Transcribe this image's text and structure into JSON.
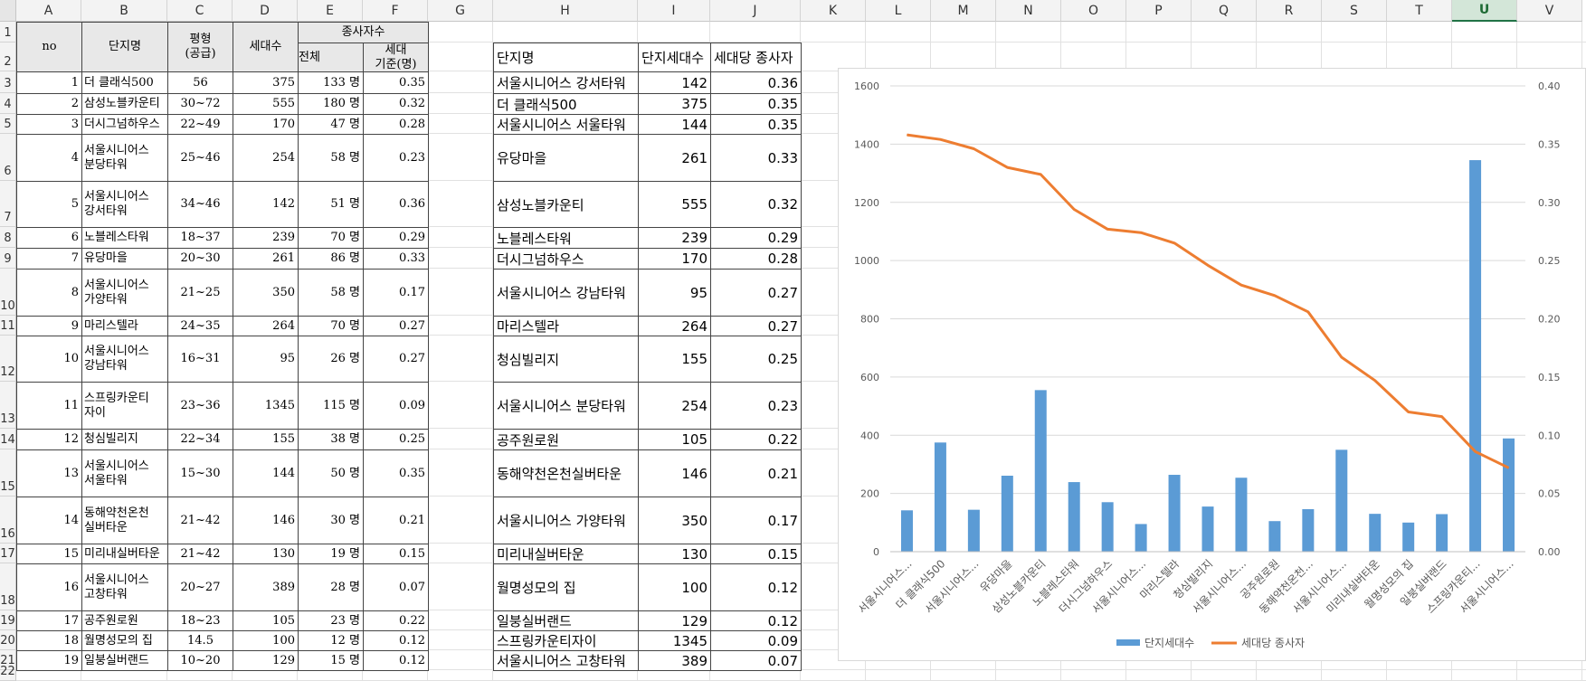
{
  "columns": [
    "A",
    "B",
    "C",
    "D",
    "E",
    "F",
    "G",
    "H",
    "I",
    "J",
    "K",
    "L",
    "M",
    "N",
    "O",
    "P",
    "Q",
    "R",
    "S",
    "T",
    "U",
    "V"
  ],
  "selected_column": "U",
  "rows": [
    "1",
    "2",
    "3",
    "4",
    "5",
    "6",
    "7",
    "8",
    "9",
    "10",
    "11",
    "12",
    "13",
    "14",
    "15",
    "16",
    "17",
    "18",
    "19",
    "20",
    "21",
    "22"
  ],
  "left_table": {
    "headers": {
      "no": "no",
      "name": "단지명",
      "size": "평형\n(공급)",
      "households": "세대수",
      "staff": "종사자수",
      "staff_total": "전체",
      "staff_per": "세대\n기준(명)"
    },
    "rows": [
      {
        "no": "1",
        "name": "더 클래식500",
        "size": "56",
        "households": "375",
        "staff": "133 명",
        "per": "0.35"
      },
      {
        "no": "2",
        "name": "삼성노블카운티",
        "size": "30~72",
        "households": "555",
        "staff": "180 명",
        "per": "0.32"
      },
      {
        "no": "3",
        "name": "더시그넘하우스",
        "size": "22~49",
        "households": "170",
        "staff": "47 명",
        "per": "0.28"
      },
      {
        "no": "4",
        "name": "서울시니어스\n분당타워",
        "size": "25~46",
        "households": "254",
        "staff": "58 명",
        "per": "0.23"
      },
      {
        "no": "5",
        "name": "서울시니어스\n강서타워",
        "size": "34~46",
        "households": "142",
        "staff": "51 명",
        "per": "0.36"
      },
      {
        "no": "6",
        "name": "노블레스타워",
        "size": "18~37",
        "households": "239",
        "staff": "70 명",
        "per": "0.29"
      },
      {
        "no": "7",
        "name": "유당마을",
        "size": "20~30",
        "households": "261",
        "staff": "86 명",
        "per": "0.33"
      },
      {
        "no": "8",
        "name": "서울시니어스\n가양타워",
        "size": "21~25",
        "households": "350",
        "staff": "58 명",
        "per": "0.17"
      },
      {
        "no": "9",
        "name": "마리스텔라",
        "size": "24~35",
        "households": "264",
        "staff": "70 명",
        "per": "0.27"
      },
      {
        "no": "10",
        "name": "서울시니어스\n강남타워",
        "size": "16~31",
        "households": "95",
        "staff": "26 명",
        "per": "0.27"
      },
      {
        "no": "11",
        "name": "스프링카운티\n자이",
        "size": "23~36",
        "households": "1345",
        "staff": "115 명",
        "per": "0.09"
      },
      {
        "no": "12",
        "name": "청심빌리지",
        "size": "22~34",
        "households": "155",
        "staff": "38 명",
        "per": "0.25"
      },
      {
        "no": "13",
        "name": "서울시니어스\n서울타워",
        "size": "15~30",
        "households": "144",
        "staff": "50 명",
        "per": "0.35"
      },
      {
        "no": "14",
        "name": "동해약천온천\n실버타운",
        "size": "21~42",
        "households": "146",
        "staff": "30 명",
        "per": "0.21"
      },
      {
        "no": "15",
        "name": "미리내실버타운",
        "size": "21~42",
        "households": "130",
        "staff": "19 명",
        "per": "0.15"
      },
      {
        "no": "16",
        "name": "서울시니어스\n고창타워",
        "size": "20~27",
        "households": "389",
        "staff": "28 명",
        "per": "0.07"
      },
      {
        "no": "17",
        "name": "공주원로원",
        "size": "18~23",
        "households": "105",
        "staff": "23 명",
        "per": "0.22"
      },
      {
        "no": "18",
        "name": "월명성모의 집",
        "size": "14.5",
        "households": "100",
        "staff": "12 명",
        "per": "0.12"
      },
      {
        "no": "19",
        "name": "일붕실버랜드",
        "size": "10~20",
        "households": "129",
        "staff": "15 명",
        "per": "0.12"
      }
    ]
  },
  "right_table": {
    "headers": {
      "name": "단지명",
      "households": "단지세대수",
      "per": "세대당 종사자"
    },
    "rows": [
      {
        "name": "서울시니어스 강서타워",
        "households": "142",
        "per": "0.36"
      },
      {
        "name": "더 클래식500",
        "households": "375",
        "per": "0.35"
      },
      {
        "name": "서울시니어스 서울타워",
        "households": "144",
        "per": "0.35"
      },
      {
        "name": "유당마을",
        "households": "261",
        "per": "0.33"
      },
      {
        "name": "삼성노블카운티",
        "households": "555",
        "per": "0.32"
      },
      {
        "name": "노블레스타워",
        "households": "239",
        "per": "0.29"
      },
      {
        "name": "더시그넘하우스",
        "households": "170",
        "per": "0.28"
      },
      {
        "name": "서울시니어스 강남타워",
        "households": "95",
        "per": "0.27"
      },
      {
        "name": "마리스텔라",
        "households": "264",
        "per": "0.27"
      },
      {
        "name": "청심빌리지",
        "households": "155",
        "per": "0.25"
      },
      {
        "name": "서울시니어스 분당타워",
        "households": "254",
        "per": "0.23"
      },
      {
        "name": "공주원로원",
        "households": "105",
        "per": "0.22"
      },
      {
        "name": "동해약천온천실버타운",
        "households": "146",
        "per": "0.21"
      },
      {
        "name": "서울시니어스 가양타워",
        "households": "350",
        "per": "0.17"
      },
      {
        "name": "미리내실버타운",
        "households": "130",
        "per": "0.15"
      },
      {
        "name": "월명성모의 집",
        "households": "100",
        "per": "0.12"
      },
      {
        "name": "일붕실버랜드",
        "households": "129",
        "per": "0.12"
      },
      {
        "name": "스프링카운티자이",
        "households": "1345",
        "per": "0.09"
      },
      {
        "name": "서울시니어스 고창타워",
        "households": "389",
        "per": "0.07"
      }
    ]
  },
  "chart_data": {
    "type": "bar",
    "title": "",
    "categories": [
      "서울시니어스...",
      "더 클래식500",
      "서울시니어스...",
      "유당마을",
      "삼성노블카운티",
      "노블레스타워",
      "더시그넘하우스",
      "서울시니어스...",
      "마리스텔라",
      "청심빌리지",
      "서울시니어스...",
      "공주원로원",
      "동해약천온천...",
      "서울시니어스...",
      "미리내실버타운",
      "월명성모의 집",
      "일붕실버랜드",
      "스프링카운티...",
      "서울시니어스..."
    ],
    "series": [
      {
        "name": "단지세대수",
        "type": "bar",
        "axis": "left",
        "color": "#5b9bd5",
        "values": [
          142,
          375,
          144,
          261,
          555,
          239,
          170,
          95,
          264,
          155,
          254,
          105,
          146,
          350,
          130,
          100,
          129,
          1345,
          389
        ]
      },
      {
        "name": "세대당 종사자",
        "type": "line",
        "axis": "right",
        "color": "#ed7d31",
        "values": [
          0.358,
          0.354,
          0.346,
          0.33,
          0.324,
          0.294,
          0.277,
          0.274,
          0.265,
          0.246,
          0.229,
          0.22,
          0.206,
          0.167,
          0.147,
          0.12,
          0.116,
          0.086,
          0.072
        ]
      }
    ],
    "y_left": {
      "min": 0,
      "max": 1600,
      "ticks": [
        "0",
        "200",
        "400",
        "600",
        "800",
        "1000",
        "1200",
        "1400",
        "1600"
      ]
    },
    "y_right": {
      "min": 0,
      "max": 0.4,
      "ticks": [
        "0.00",
        "0.05",
        "0.10",
        "0.15",
        "0.20",
        "0.25",
        "0.30",
        "0.35",
        "0.40"
      ]
    },
    "grid": true,
    "legend": "bottom"
  }
}
